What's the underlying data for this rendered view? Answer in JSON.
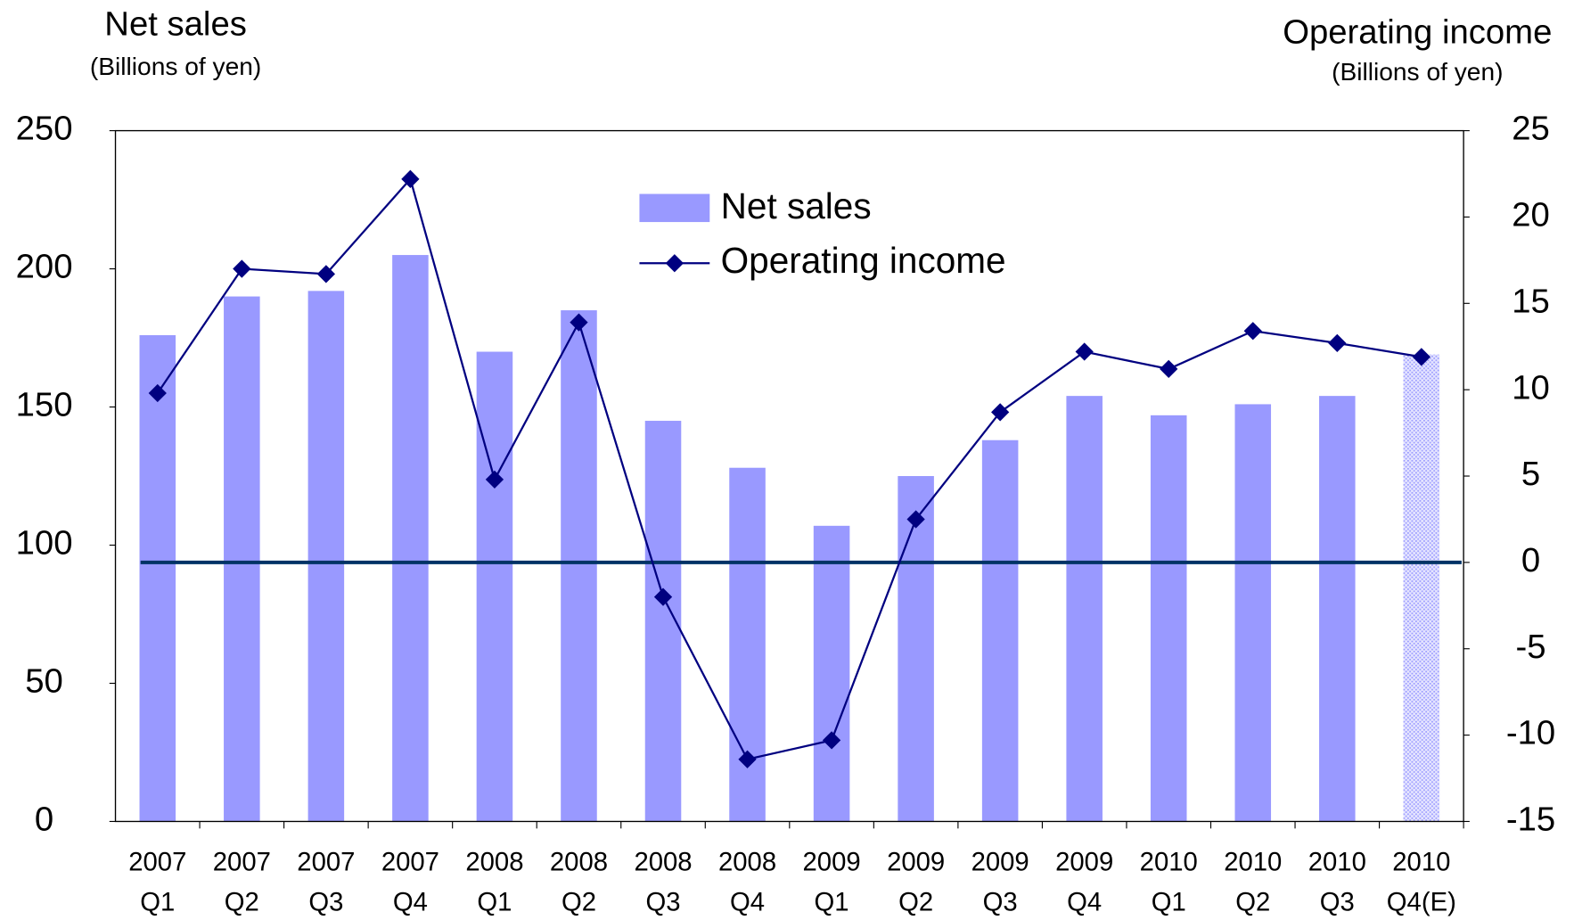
{
  "chart_data": {
    "type": "bar_line",
    "left_axis_title": "Net sales",
    "left_axis_unit": "(Billions of yen)",
    "right_axis_title": "Operating income",
    "right_axis_unit": "(Billions of yen)",
    "categories": [
      [
        "2007",
        "Q1"
      ],
      [
        "2007",
        "Q2"
      ],
      [
        "2007",
        "Q3"
      ],
      [
        "2007",
        "Q4"
      ],
      [
        "2008",
        "Q1"
      ],
      [
        "2008",
        "Q2"
      ],
      [
        "2008",
        "Q3"
      ],
      [
        "2008",
        "Q4"
      ],
      [
        "2009",
        "Q1"
      ],
      [
        "2009",
        "Q2"
      ],
      [
        "2009",
        "Q3"
      ],
      [
        "2009",
        "Q4"
      ],
      [
        "2010",
        "Q1"
      ],
      [
        "2010",
        "Q2"
      ],
      [
        "2010",
        "Q3"
      ],
      [
        "2010",
        "Q4(E)"
      ]
    ],
    "series": [
      {
        "name": "Net sales",
        "type": "bar",
        "color": "#9999ff",
        "hatched": [
          15
        ],
        "values": [
          176,
          190,
          192,
          205,
          170,
          185,
          145,
          128,
          107,
          125,
          138,
          154,
          147,
          151,
          154,
          169
        ]
      },
      {
        "name": "Operating income",
        "type": "line",
        "axis": "y2",
        "color": "#000080",
        "values": [
          9.8,
          17.0,
          16.7,
          22.2,
          4.8,
          13.9,
          -2.0,
          -11.4,
          -10.3,
          2.5,
          8.7,
          12.2,
          11.2,
          13.4,
          12.7,
          11.9
        ]
      }
    ],
    "ylim": [
      0,
      250
    ],
    "yticks": [
      0,
      50,
      100,
      150,
      200,
      250
    ],
    "y2lim": [
      -15,
      25
    ],
    "y2ticks": [
      -15,
      -10,
      -5,
      0,
      5,
      10,
      15,
      20,
      25
    ],
    "negative_tick_color": "#ff0000",
    "zero_line_color": "#003366",
    "legend_position": "top-center"
  }
}
